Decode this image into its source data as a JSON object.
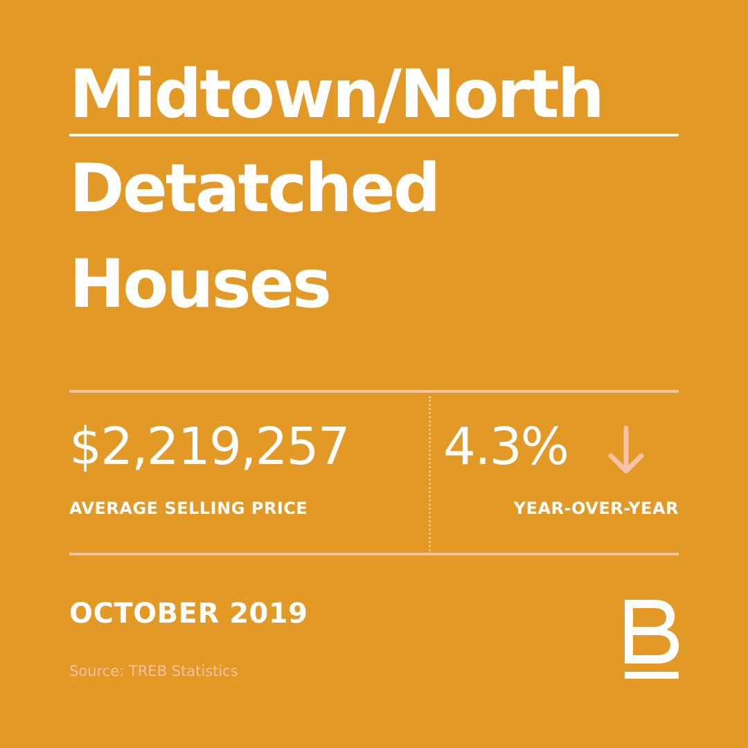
{
  "title": {
    "line1": "Midtown/North",
    "line2": "Detatched",
    "line3": "Houses"
  },
  "stats": {
    "price": "$2,219,257",
    "price_label": "AVERAGE SELLING PRICE",
    "change": "4.3%",
    "change_direction": "down",
    "change_icon": "arrow-down-icon",
    "change_label": "YEAR-OVER-YEAR"
  },
  "date": "OCTOBER 2019",
  "source": "Source: TREB Statistics",
  "logo": {
    "letter": "B"
  },
  "colors": {
    "background": "#E29925",
    "text": "#FFFFFF",
    "accent": "#F7C2A7"
  }
}
